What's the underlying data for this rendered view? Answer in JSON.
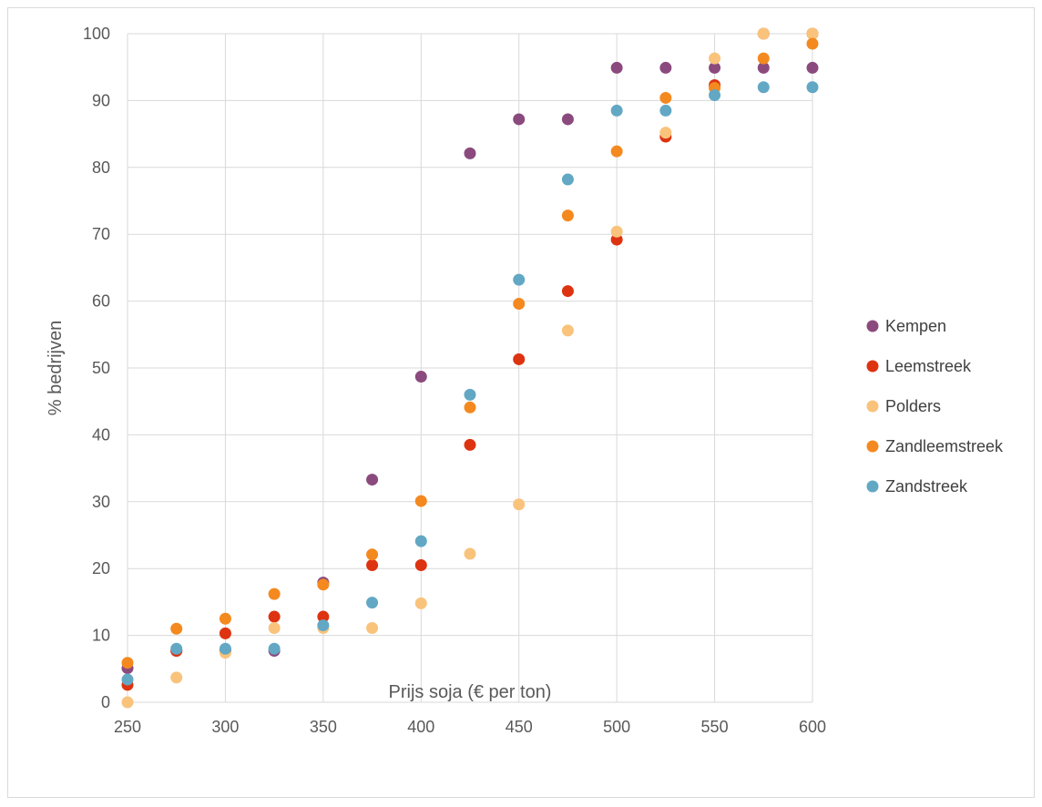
{
  "chart_data": {
    "type": "scatter",
    "title": "",
    "xlabel": "Prijs soja (€ per ton)",
    "ylabel": "% bedrijven",
    "xlim": [
      250,
      600
    ],
    "ylim": [
      0,
      100
    ],
    "x_ticks": [
      250,
      300,
      350,
      400,
      450,
      500,
      550,
      600
    ],
    "y_ticks": [
      0,
      10,
      20,
      30,
      40,
      50,
      60,
      70,
      80,
      90,
      100
    ],
    "grid": true,
    "legend_position": "right",
    "x": [
      250,
      275,
      300,
      325,
      350,
      375,
      400,
      425,
      450,
      475,
      500,
      525,
      550,
      575,
      600
    ],
    "series": [
      {
        "name": "Kempen",
        "color": "#8b4a7e",
        "values": [
          5.1,
          7.7,
          7.7,
          7.7,
          17.9,
          33.3,
          48.7,
          82.1,
          87.2,
          87.2,
          94.9,
          94.9,
          94.9,
          94.9,
          94.9
        ]
      },
      {
        "name": "Leemstreek",
        "color": "#dd3311",
        "values": [
          2.6,
          7.7,
          10.3,
          12.8,
          12.8,
          20.5,
          20.5,
          38.5,
          51.3,
          61.5,
          69.2,
          84.6,
          92.3,
          100,
          100
        ]
      },
      {
        "name": "Polders",
        "color": "#f9c37c",
        "values": [
          0,
          3.7,
          7.4,
          11.1,
          11.1,
          11.1,
          14.8,
          22.2,
          29.6,
          55.6,
          70.4,
          85.2,
          96.3,
          100,
          100
        ]
      },
      {
        "name": "Zandleemstreek",
        "color": "#f4891f",
        "values": [
          5.9,
          11.0,
          12.5,
          16.2,
          17.6,
          22.1,
          30.1,
          44.1,
          59.6,
          72.8,
          82.4,
          90.4,
          91.9,
          96.3,
          98.5
        ]
      },
      {
        "name": "Zandstreek",
        "color": "#62a8c4",
        "values": [
          3.4,
          8.0,
          8.0,
          8.0,
          11.5,
          14.9,
          24.1,
          46.0,
          63.2,
          78.2,
          88.5,
          88.5,
          90.8,
          92.0,
          92.0
        ]
      }
    ]
  }
}
